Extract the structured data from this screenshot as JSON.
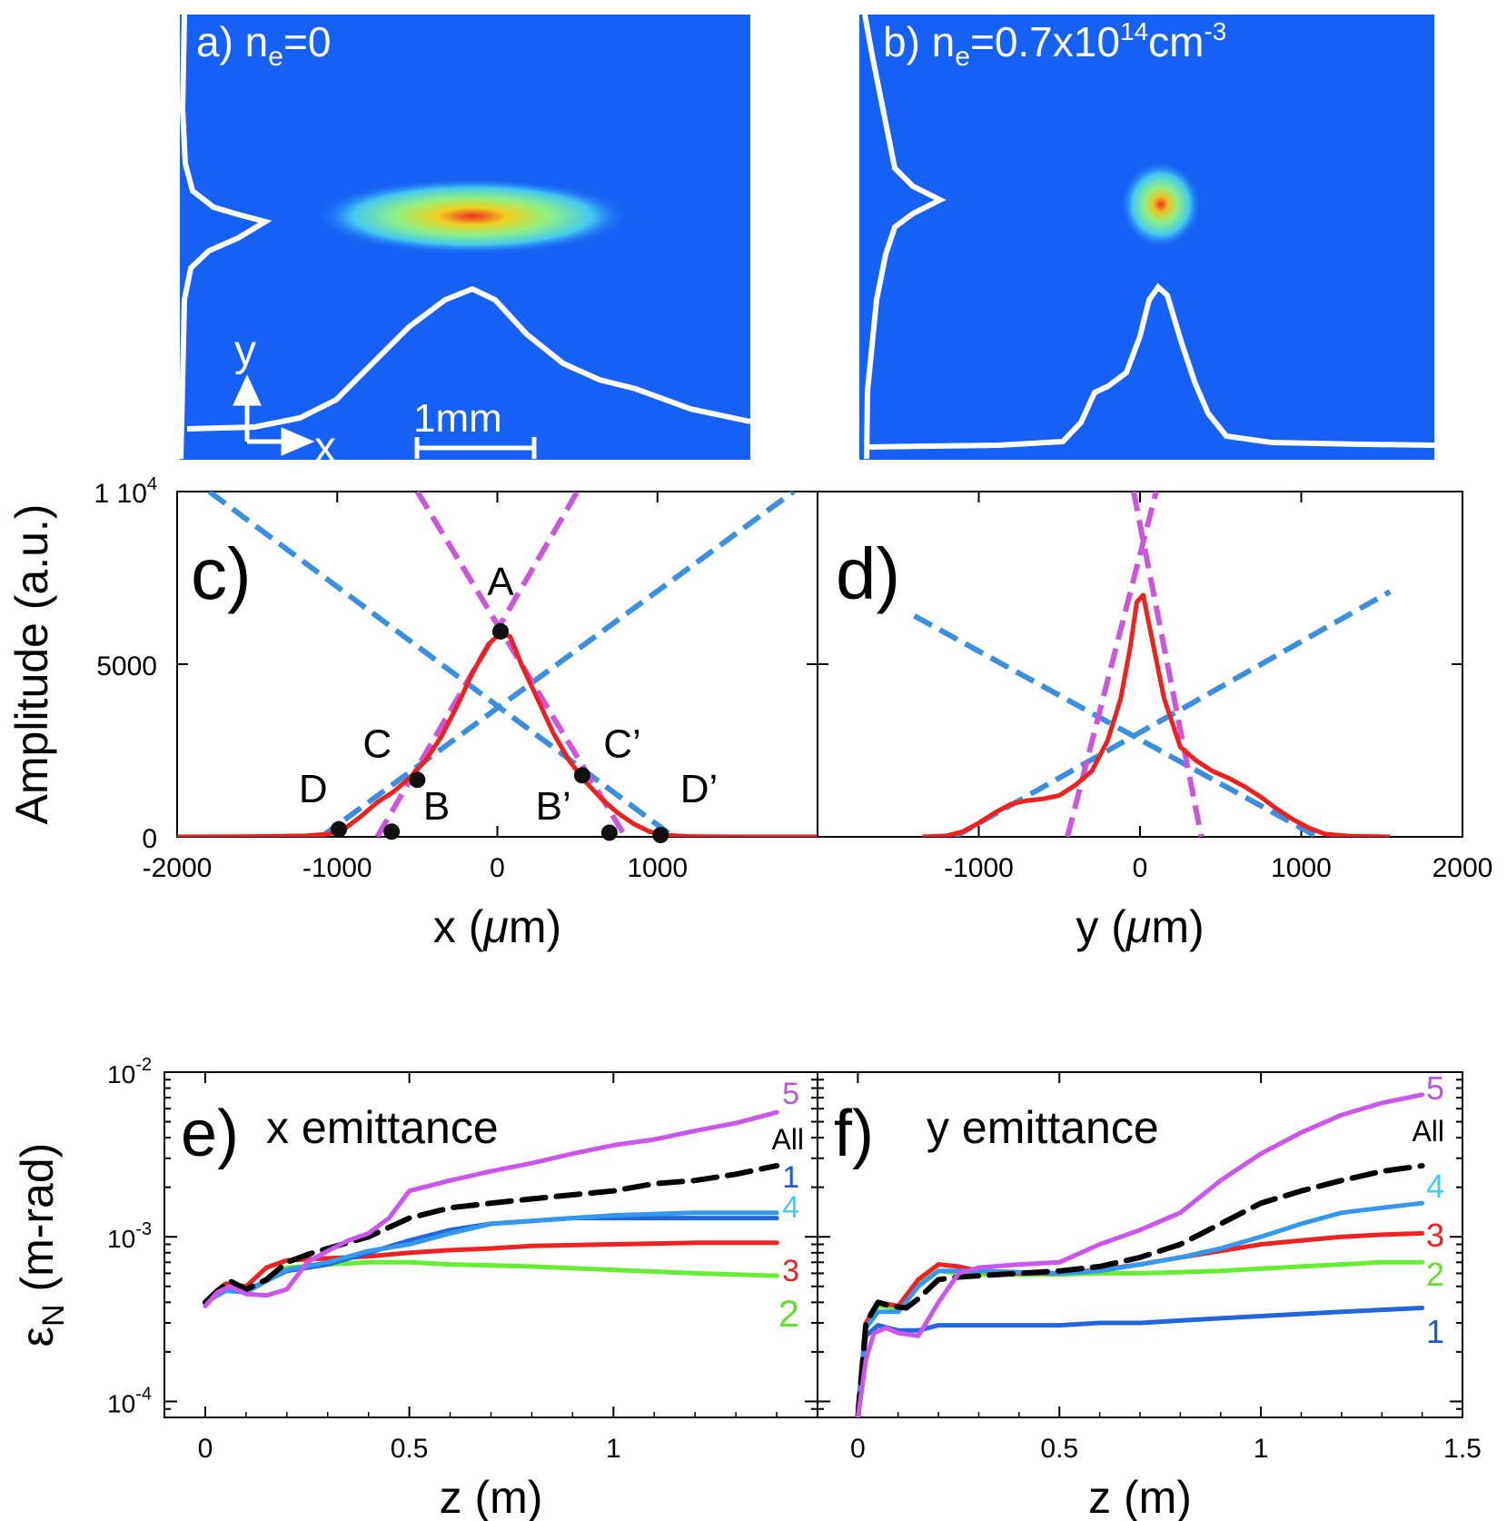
{
  "colors": {
    "camera_bg": "#1560f5",
    "profile": "#ffffff",
    "measured": "#f02020",
    "fit_blue": "#3a8fe0",
    "fit_magenta": "#cc55dd",
    "all": "#000000",
    "c1": "#2266dd",
    "c2": "#66ee33",
    "c3": "#ee2222",
    "c4": "#3399ee",
    "c5": "#cc55ee",
    "label1": "#2255dd",
    "label2": "#66dd33",
    "label3": "#ee2222",
    "label4": "#44ccee",
    "label5": "#bb55dd"
  },
  "panel_a": {
    "label": "a) n",
    "sub": "e",
    "rest": "=0",
    "axis_y": "y",
    "axis_x": "x",
    "scale": "1mm"
  },
  "panel_b": {
    "label": "b) n",
    "sub": "e",
    "rest": "=0.7x10",
    "sup": "14",
    "unit": "cm",
    "unit_sup": "-3"
  },
  "chart_data": [
    {
      "id": "c",
      "type": "line",
      "panel_label": "c)",
      "xlabel": "x (μm)",
      "ylabel": "Amplitude (a.u.)",
      "xlim": [
        -2000,
        2000
      ],
      "ylim": [
        0,
        10000
      ],
      "xticks": [
        "-2000",
        "-1000",
        "0",
        "1000"
      ],
      "yticks": [
        "0",
        "5000",
        "1 10"
      ],
      "ytick_top_sup": "4",
      "measured": {
        "x": [
          -2000,
          -1500,
          -1200,
          -1050,
          -950,
          -850,
          -750,
          -650,
          -550,
          -450,
          -350,
          -250,
          -150,
          -50,
          20,
          80,
          150,
          250,
          350,
          450,
          550,
          650,
          750,
          850,
          950,
          1050,
          1200,
          1500,
          2000
        ],
        "y": [
          0,
          10,
          30,
          80,
          250,
          600,
          1000,
          1300,
          1700,
          2200,
          2900,
          3800,
          4800,
          5600,
          5900,
          5800,
          5000,
          4000,
          3000,
          2200,
          1600,
          1100,
          700,
          380,
          150,
          50,
          10,
          0,
          0
        ]
      },
      "fits": [
        {
          "name": "blue-left",
          "kind": "dashed",
          "color": "fit_blue",
          "x": [
            -1800,
            1100
          ],
          "y": [
            10000,
            0
          ]
        },
        {
          "name": "blue-right",
          "kind": "dashed",
          "color": "fit_blue",
          "x": [
            -1100,
            1850
          ],
          "y": [
            0,
            10000
          ]
        },
        {
          "name": "magenta-left",
          "kind": "dashed",
          "color": "fit_magenta",
          "x": [
            -500,
            800
          ],
          "y": [
            10000,
            0
          ]
        },
        {
          "name": "magenta-right",
          "kind": "dashed",
          "color": "fit_magenta",
          "x": [
            -750,
            500
          ],
          "y": [
            0,
            10000
          ]
        }
      ],
      "points": [
        {
          "x": 20,
          "y": 5950
        },
        {
          "x": -500,
          "y": 1650
        },
        {
          "x": -990,
          "y": 220
        },
        {
          "x": -660,
          "y": 150
        },
        {
          "x": 530,
          "y": 1780
        },
        {
          "x": 700,
          "y": 120
        },
        {
          "x": 1020,
          "y": 50
        }
      ],
      "annotations": [
        {
          "text": "A",
          "x": 20,
          "y": 7000
        },
        {
          "text": "C",
          "x": -750,
          "y": 2300
        },
        {
          "text": "D",
          "x": -1150,
          "y": 1000
        },
        {
          "text": "B",
          "x": -380,
          "y": 500
        },
        {
          "text": "C’",
          "x": 780,
          "y": 2300
        },
        {
          "text": "B’",
          "x": 350,
          "y": 500
        },
        {
          "text": "D’",
          "x": 1260,
          "y": 1000
        }
      ]
    },
    {
      "id": "d",
      "type": "line",
      "panel_label": "d)",
      "xlabel": "y (μm)",
      "ylabel": "",
      "xlim": [
        -2000,
        2000
      ],
      "ylim": [
        0,
        10000
      ],
      "xticks": [
        "-1000",
        "0",
        "1000",
        "2000"
      ],
      "measured": {
        "x": [
          -1350,
          -1200,
          -1100,
          -1000,
          -900,
          -800,
          -700,
          -600,
          -500,
          -400,
          -300,
          -200,
          -120,
          -60,
          -20,
          20,
          80,
          150,
          250,
          350,
          450,
          550,
          650,
          750,
          850,
          950,
          1050,
          1150,
          1300,
          1550
        ],
        "y": [
          0,
          30,
          150,
          400,
          700,
          950,
          1050,
          1100,
          1200,
          1500,
          1900,
          2800,
          4000,
          5500,
          6800,
          7000,
          5600,
          4000,
          2600,
          2200,
          1900,
          1700,
          1450,
          1150,
          800,
          500,
          250,
          80,
          20,
          0
        ]
      },
      "fits": [
        {
          "name": "blue-left",
          "kind": "dashed",
          "color": "fit_blue",
          "x": [
            -1400,
            1100
          ],
          "y": [
            6400,
            0
          ]
        },
        {
          "name": "blue-right",
          "kind": "dashed",
          "color": "fit_blue",
          "x": [
            -1150,
            1550
          ],
          "y": [
            0,
            7100
          ]
        },
        {
          "name": "magenta-left",
          "kind": "dashed",
          "color": "fit_magenta",
          "x": [
            -40,
            380
          ],
          "y": [
            10000,
            0
          ]
        },
        {
          "name": "magenta-right",
          "kind": "dashed",
          "color": "fit_magenta",
          "x": [
            -450,
            100
          ],
          "y": [
            0,
            10000
          ]
        }
      ]
    },
    {
      "id": "e",
      "type": "line",
      "panel_label": "e)",
      "title": "x emittance",
      "xlabel": "z (m)",
      "ylabel": "ε",
      "ylabel_sub": "N",
      "ylabel_rest": " (m-rad)",
      "scale_y": "log",
      "xlim": [
        -0.1,
        1.5
      ],
      "ylim": [
        8e-05,
        0.01
      ],
      "xticks": [
        "0",
        "0.5",
        "1"
      ],
      "yticks": [
        {
          "base": "10",
          "exp": "-2"
        },
        {
          "base": "10",
          "exp": "-3"
        },
        {
          "base": "10",
          "exp": "-4"
        }
      ],
      "series": [
        {
          "name": "5",
          "color": "c5",
          "label_color": "label5",
          "dashed": false,
          "x": [
            0,
            0.03,
            0.06,
            0.1,
            0.15,
            0.2,
            0.25,
            0.3,
            0.35,
            0.4,
            0.45,
            0.5,
            0.6,
            0.7,
            0.8,
            0.9,
            1.0,
            1.1,
            1.2,
            1.3,
            1.4
          ],
          "y": [
            0.00038,
            0.00046,
            0.0005,
            0.00045,
            0.00044,
            0.00048,
            0.0007,
            0.00082,
            0.00095,
            0.00105,
            0.0013,
            0.0019,
            0.0022,
            0.0025,
            0.0028,
            0.0032,
            0.0036,
            0.0039,
            0.0044,
            0.0049,
            0.0057
          ]
        },
        {
          "name": "All",
          "color": "all",
          "label_color": "all",
          "dashed": true,
          "x": [
            0,
            0.03,
            0.06,
            0.1,
            0.15,
            0.2,
            0.25,
            0.3,
            0.4,
            0.5,
            0.6,
            0.7,
            0.8,
            0.9,
            1.0,
            1.1,
            1.2,
            1.3,
            1.4
          ],
          "y": [
            0.0004,
            0.00047,
            0.00054,
            0.00048,
            0.00055,
            0.0007,
            0.00078,
            0.00085,
            0.001,
            0.0013,
            0.0015,
            0.0016,
            0.0017,
            0.0018,
            0.0019,
            0.0021,
            0.0022,
            0.0024,
            0.0027
          ]
        },
        {
          "name": "1",
          "color": "c1",
          "label_color": "label1",
          "dashed": false,
          "x": [
            0,
            0.05,
            0.1,
            0.2,
            0.3,
            0.4,
            0.5,
            0.6,
            0.7,
            0.8,
            0.9,
            1.0,
            1.2,
            1.4
          ],
          "y": [
            0.0004,
            0.00048,
            0.00047,
            0.00062,
            0.00068,
            0.0008,
            0.00095,
            0.0011,
            0.0012,
            0.00125,
            0.0013,
            0.0013,
            0.0013,
            0.0013
          ]
        },
        {
          "name": "4",
          "color": "c4",
          "label_color": "label4",
          "dashed": false,
          "x": [
            0,
            0.05,
            0.1,
            0.2,
            0.3,
            0.4,
            0.5,
            0.6,
            0.7,
            0.8,
            0.9,
            1.0,
            1.2,
            1.4
          ],
          "y": [
            0.0004,
            0.00047,
            0.00046,
            0.00063,
            0.0007,
            0.00082,
            0.0009,
            0.00105,
            0.0012,
            0.00125,
            0.0013,
            0.00135,
            0.0014,
            0.0014
          ]
        },
        {
          "name": "3",
          "color": "c3",
          "label_color": "label3",
          "dashed": false,
          "x": [
            0,
            0.05,
            0.1,
            0.15,
            0.2,
            0.3,
            0.4,
            0.5,
            0.6,
            0.7,
            0.8,
            1.0,
            1.2,
            1.4
          ],
          "y": [
            0.0004,
            0.00052,
            0.0005,
            0.00065,
            0.00072,
            0.00074,
            0.00076,
            0.0008,
            0.00083,
            0.00085,
            0.00088,
            0.0009,
            0.00092,
            0.00092
          ]
        },
        {
          "name": "2",
          "color": "c2",
          "label_color": "label2",
          "dashed": false,
          "x": [
            0,
            0.05,
            0.1,
            0.2,
            0.3,
            0.4,
            0.5,
            0.6,
            0.8,
            1.0,
            1.2,
            1.4
          ],
          "y": [
            0.0004,
            0.00047,
            0.00046,
            0.00065,
            0.00068,
            0.0007,
            0.0007,
            0.00068,
            0.00066,
            0.00063,
            0.0006,
            0.00058
          ]
        }
      ]
    },
    {
      "id": "f",
      "type": "line",
      "panel_label": "f)",
      "title": "y emittance",
      "xlabel": "z (m)",
      "scale_y": "log",
      "xlim": [
        -0.1,
        1.5
      ],
      "ylim": [
        8e-05,
        0.01
      ],
      "xticks": [
        "0",
        "0.5",
        "1",
        "1.5"
      ],
      "series": [
        {
          "name": "5",
          "color": "c5",
          "label_color": "label5",
          "dashed": false,
          "x": [
            0,
            0.02,
            0.04,
            0.07,
            0.1,
            0.15,
            0.2,
            0.25,
            0.3,
            0.4,
            0.5,
            0.6,
            0.7,
            0.8,
            0.9,
            1.0,
            1.1,
            1.2,
            1.3,
            1.4
          ],
          "y": [
            8e-05,
            0.00018,
            0.00026,
            0.00028,
            0.00026,
            0.00025,
            0.0004,
            0.0006,
            0.00065,
            0.00068,
            0.0007,
            0.0009,
            0.0011,
            0.0014,
            0.0022,
            0.0032,
            0.0043,
            0.0055,
            0.0065,
            0.0073
          ]
        },
        {
          "name": "All",
          "color": "all",
          "label_color": "all",
          "dashed": true,
          "x": [
            0,
            0.02,
            0.05,
            0.08,
            0.12,
            0.15,
            0.2,
            0.25,
            0.3,
            0.4,
            0.5,
            0.6,
            0.7,
            0.8,
            0.9,
            1.0,
            1.1,
            1.2,
            1.3,
            1.4
          ],
          "y": [
            8e-05,
            0.0003,
            0.0004,
            0.00038,
            0.00037,
            0.00042,
            0.00055,
            0.00057,
            0.00058,
            0.0006,
            0.00062,
            0.00066,
            0.00075,
            0.0009,
            0.0012,
            0.0016,
            0.0019,
            0.0022,
            0.0025,
            0.0027
          ]
        },
        {
          "name": "4",
          "color": "c4",
          "label_color": "label4",
          "dashed": false,
          "x": [
            0,
            0.02,
            0.05,
            0.1,
            0.15,
            0.2,
            0.25,
            0.3,
            0.4,
            0.5,
            0.6,
            0.7,
            0.8,
            0.9,
            1.0,
            1.1,
            1.2,
            1.3,
            1.4
          ],
          "y": [
            9e-05,
            0.00028,
            0.00035,
            0.00035,
            0.0005,
            0.00062,
            0.00062,
            0.00062,
            0.00061,
            0.0006,
            0.00062,
            0.00068,
            0.00075,
            0.00085,
            0.001,
            0.0012,
            0.0014,
            0.0015,
            0.0016
          ]
        },
        {
          "name": "3",
          "color": "c3",
          "label_color": "label3",
          "dashed": false,
          "x": [
            0,
            0.02,
            0.05,
            0.1,
            0.15,
            0.2,
            0.25,
            0.3,
            0.4,
            0.5,
            0.6,
            0.7,
            0.8,
            0.9,
            1.0,
            1.1,
            1.2,
            1.3,
            1.4
          ],
          "y": [
            9e-05,
            0.0003,
            0.0004,
            0.00038,
            0.00055,
            0.00068,
            0.00066,
            0.00062,
            0.0006,
            0.0006,
            0.00063,
            0.00068,
            0.00075,
            0.00082,
            0.0009,
            0.00095,
            0.001,
            0.00103,
            0.00105
          ]
        },
        {
          "name": "2",
          "color": "c2",
          "label_color": "label2",
          "dashed": false,
          "x": [
            0,
            0.02,
            0.05,
            0.1,
            0.15,
            0.2,
            0.25,
            0.3,
            0.4,
            0.5,
            0.6,
            0.7,
            0.8,
            0.9,
            1.0,
            1.1,
            1.2,
            1.3,
            1.4
          ],
          "y": [
            9e-05,
            0.0003,
            0.00038,
            0.00037,
            0.00052,
            0.00062,
            0.0006,
            0.00059,
            0.00059,
            0.00059,
            0.0006,
            0.0006,
            0.00061,
            0.00062,
            0.00064,
            0.00066,
            0.00068,
            0.0007,
            0.0007
          ]
        },
        {
          "name": "1",
          "color": "c1",
          "label_color": "label1",
          "dashed": false,
          "x": [
            0,
            0.02,
            0.05,
            0.1,
            0.15,
            0.2,
            0.3,
            0.4,
            0.5,
            0.6,
            0.7,
            0.8,
            0.9,
            1.0,
            1.1,
            1.2,
            1.3,
            1.4
          ],
          "y": [
            9e-05,
            0.00025,
            0.00029,
            0.00027,
            0.00027,
            0.00029,
            0.00029,
            0.00029,
            0.00029,
            0.0003,
            0.0003,
            0.00031,
            0.00032,
            0.00033,
            0.00034,
            0.00035,
            0.00036,
            0.00037
          ]
        }
      ]
    }
  ]
}
